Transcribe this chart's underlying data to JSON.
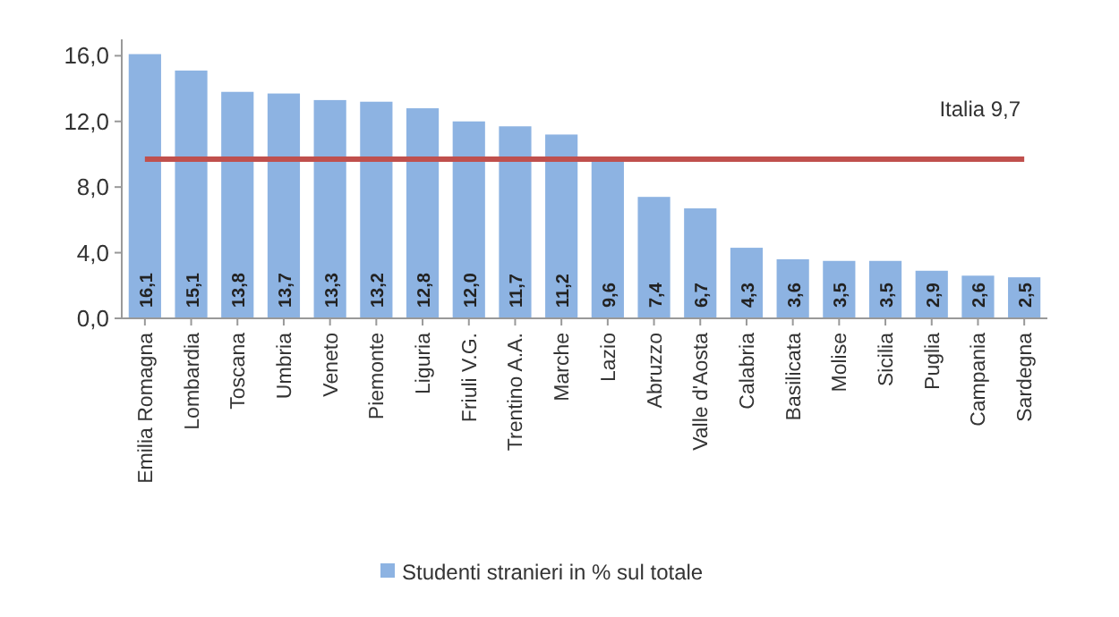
{
  "chart_data": {
    "type": "bar",
    "categories": [
      "Emilia Romagna",
      "Lombardia",
      "Toscana",
      "Umbria",
      "Veneto",
      "Piemonte",
      "Liguria",
      "Friuli V.G.",
      "Trentino A.A.",
      "Marche",
      "Lazio",
      "Abruzzo",
      "Valle d'Aosta",
      "Calabria",
      "Basilicata",
      "Molise",
      "Sicilia",
      "Puglia",
      "Campania",
      "Sardegna"
    ],
    "series": [
      {
        "name": "Studenti stranieri in % sul totale",
        "color": "#8db3e2",
        "values": [
          16.1,
          15.1,
          13.8,
          13.7,
          13.3,
          13.2,
          12.8,
          12.0,
          11.7,
          11.2,
          9.6,
          7.4,
          6.7,
          4.3,
          3.6,
          3.5,
          3.5,
          2.9,
          2.6,
          2.5
        ],
        "value_labels": [
          "16,1",
          "15,1",
          "13,8",
          "13,7",
          "13,3",
          "13,2",
          "12,8",
          "12,0",
          "11,7",
          "11,2",
          "9,6",
          "7,4",
          "6,7",
          "4,3",
          "3,6",
          "3,5",
          "3,5",
          "2,9",
          "2,6",
          "2,5"
        ]
      }
    ],
    "ylim": [
      0,
      17
    ],
    "yticks": [
      {
        "value": 0,
        "label": "0,0"
      },
      {
        "value": 4,
        "label": "4,0"
      },
      {
        "value": 8,
        "label": "8,0"
      },
      {
        "value": 12,
        "label": "12,0"
      },
      {
        "value": 16,
        "label": "16,0"
      }
    ],
    "ref_lines": [
      {
        "axis": "y",
        "value": 9.7,
        "label": "Italia 9,7",
        "color": "#c0504d"
      }
    ],
    "grid": false,
    "legend": "bottom"
  }
}
